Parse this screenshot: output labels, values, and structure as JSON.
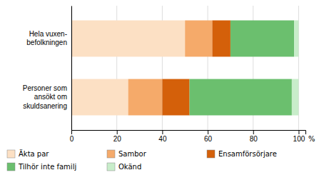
{
  "chart_data": {
    "type": "bar",
    "orientation": "horizontal",
    "stacked": true,
    "categories": [
      "Hela vuxen-\nbefolkningen",
      "Personer som\nansökt om\nskuldsanering"
    ],
    "series": [
      {
        "name": "Äkta par",
        "color": "#fce0c4",
        "values": [
          50,
          25
        ]
      },
      {
        "name": "Sambor",
        "color": "#f5aa6a",
        "values": [
          12,
          15
        ]
      },
      {
        "name": "Ensamförsörjare",
        "color": "#d4600a",
        "values": [
          8,
          12
        ]
      },
      {
        "name": "Tilhör inte familj",
        "color": "#6bbf6e",
        "values": [
          28,
          45
        ]
      },
      {
        "name": "Okänd",
        "color": "#c8edca",
        "values": [
          2,
          3
        ]
      }
    ],
    "xlim": [
      0,
      103
    ],
    "xticks": [
      0,
      20,
      40,
      60,
      80,
      100
    ],
    "xlabel": "%",
    "grid": true,
    "legend": "bottom"
  }
}
